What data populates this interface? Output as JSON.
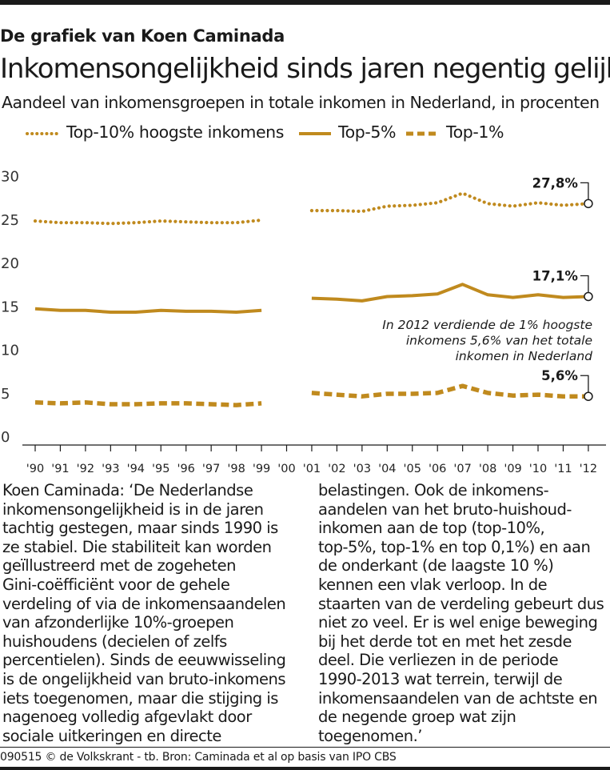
{
  "header": {
    "kicker": "De grafiek van Koen Caminada",
    "title": "Inkomensongelijkheid sinds jaren negentig gelijk",
    "subtitle": "Aandeel van inkomensgroepen in totale inkomen in Nederland, in procenten"
  },
  "legend": [
    {
      "label": "Top-10% hoogste inkomens",
      "style": "dotted"
    },
    {
      "label": "Top-5%",
      "style": "solid"
    },
    {
      "label": "Top-1%",
      "style": "dashed"
    }
  ],
  "chart_data": {
    "type": "line",
    "color": "#c08a1e",
    "x": [
      "'90",
      "'91",
      "'92",
      "'93",
      "'94",
      "'95",
      "'96",
      "'97",
      "'98",
      "'99",
      "'00",
      "'01",
      "'02",
      "'03",
      "'04",
      "'05",
      "'06",
      "'07",
      "'08",
      "'09",
      "'10",
      "'11",
      "'12"
    ],
    "ylim": [
      0,
      30
    ],
    "yticks": [
      0,
      5,
      10,
      15,
      20,
      25,
      30
    ],
    "series": [
      {
        "name": "Top-10% hoogste inkomens",
        "style": "dotted",
        "values": [
          25.8,
          25.6,
          25.6,
          25.5,
          25.6,
          25.8,
          25.7,
          25.6,
          25.6,
          25.9,
          null,
          27.0,
          27.0,
          26.9,
          27.5,
          27.6,
          27.9,
          29.0,
          27.8,
          27.5,
          27.9,
          27.6,
          27.8
        ]
      },
      {
        "name": "Top-5%",
        "style": "solid",
        "values": [
          15.7,
          15.5,
          15.5,
          15.3,
          15.3,
          15.5,
          15.4,
          15.4,
          15.3,
          15.5,
          null,
          16.9,
          16.8,
          16.6,
          17.1,
          17.2,
          17.4,
          18.5,
          17.3,
          17.0,
          17.3,
          17.0,
          17.1
        ]
      },
      {
        "name": "Top-1%",
        "style": "dashed",
        "values": [
          4.9,
          4.8,
          4.9,
          4.7,
          4.7,
          4.8,
          4.8,
          4.7,
          4.6,
          4.8,
          null,
          6.0,
          5.8,
          5.6,
          5.9,
          5.9,
          6.0,
          6.8,
          6.0,
          5.7,
          5.8,
          5.6,
          5.6
        ]
      }
    ],
    "end_labels": [
      "27,8%",
      "17,1%",
      "5,6%"
    ],
    "annotation": [
      "In 2012 verdiende de 1% hoogste",
      "inkomens 5,6% van het totale",
      "inkomen in Nederland"
    ]
  },
  "body": {
    "left": [
      "Koen Caminada: ‘De Nederlandse",
      "inkomensongelijkheid is in de jaren",
      "tachtig gestegen, maar sinds 1990 is",
      "ze stabiel. Die stabiliteit kan worden",
      "geïllustreerd met de zogeheten",
      "Gini-coëfficiënt voor de gehele",
      "verdeling of via de inkomensaandelen",
      "van afzonderlijke 10%-groepen",
      "huishoudens (decielen of zelfs",
      "percentielen). Sinds de eeuwwisseling",
      "is de ongelijkheid van bruto-inkomens",
      "iets toegenomen, maar die stijging is",
      "nagenoeg volledig afgevlakt door",
      "sociale uitkeringen en directe"
    ],
    "right": [
      "belastingen. Ook de inkomens-",
      "aandelen van het bruto-huishoud-",
      "inkomen aan de top (top-10%,",
      "top-5%, top-1% en top 0,1%) en aan",
      "de onderkant (de laagste 10 %)",
      "kennen een vlak verloop. In de",
      "staarten van de verdeling gebeurt dus",
      "niet zo veel. Er is wel enige beweging",
      "bij het derde tot en met het zesde",
      "deel. Die verliezen in de periode",
      "1990-2013 wat terrein, terwijl de",
      "inkomensaandelen van de achtste en",
      "de negende groep wat zijn",
      "toegenomen.’"
    ]
  },
  "footer": "090515 © de Volkskrant - tb. Bron: Caminada et al op basis van IPO CBS"
}
